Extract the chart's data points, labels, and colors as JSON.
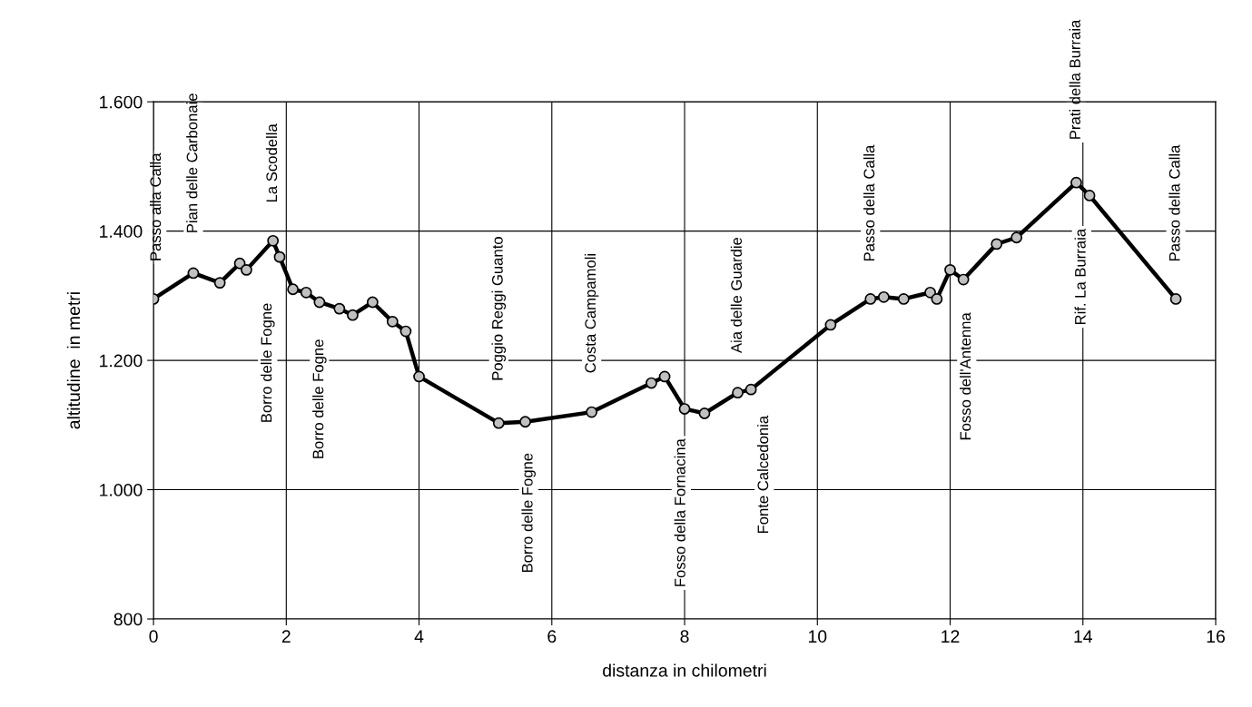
{
  "chart_data": {
    "type": "line",
    "xlabel": "distanza in chilometri",
    "ylabel": "altitudine  in metri",
    "x": [
      0,
      0.6,
      1.0,
      1.3,
      1.4,
      1.8,
      1.9,
      2.1,
      2.3,
      2.5,
      2.8,
      3.0,
      3.3,
      3.6,
      3.8,
      4.0,
      5.2,
      5.6,
      6.6,
      7.5,
      7.7,
      8.0,
      8.3,
      8.8,
      9.0,
      10.2,
      10.8,
      11.0,
      11.3,
      11.7,
      11.8,
      12.0,
      12.2,
      12.7,
      13.0,
      13.9,
      14.1,
      15.4
    ],
    "series": [
      {
        "color": "#000000",
        "values": [
          1295,
          1335,
          1320,
          1350,
          1340,
          1385,
          1360,
          1310,
          1305,
          1290,
          1280,
          1270,
          1290,
          1260,
          1245,
          1175,
          1103,
          1105,
          1120,
          1165,
          1175,
          1125,
          1118,
          1150,
          1155,
          1255,
          1295,
          1298,
          1295,
          1305,
          1295,
          1340,
          1325,
          1380,
          1390,
          1475,
          1455,
          1295
        ]
      }
    ],
    "xlim": [
      0,
      16
    ],
    "xticks": [
      0,
      2,
      4,
      6,
      8,
      10,
      12,
      14,
      16
    ],
    "ylim": [
      800,
      1600
    ],
    "yticks": [
      800,
      {
        "value": 1000,
        "label": "1.000"
      },
      {
        "value": 1200,
        "label": "1.200"
      },
      {
        "value": 1400,
        "label": "1.400"
      },
      {
        "value": 1600,
        "label": "1.600"
      }
    ],
    "grid": true,
    "marker": "circle",
    "line_style": "solid",
    "annotations": [
      {
        "text": "Passo alla Calla",
        "x": 0,
        "y": 1295
      },
      {
        "text": "Pian delle Carbonaie",
        "x": 0.6,
        "y": 1335
      },
      {
        "text": "La Scodella",
        "x": 1.8,
        "y": 1385
      },
      "Borro delle Fogne",
      {
        "text": "Borro delle Fogne",
        "x": 2.5,
        "y": 1290
      },
      {
        "text": "Poggio Reggi Guanto",
        "x": 5.2,
        "y": 1103
      },
      {
        "text": "Borro delle Fogne",
        "x": 5.6,
        "y": 1105
      },
      {
        "text": "Costa Campamoli",
        "x": 6.6,
        "y": 1120
      },
      {
        "text": "Fosso della Fornacina",
        "x": 8.0,
        "y": 1125
      },
      {
        "text": "Aia delle Guardie",
        "x": 8.8,
        "y": 1150
      },
      {
        "text": "Fonte Calcedonia",
        "x": 9.0,
        "y": 1155
      },
      {
        "text": "Passo della Calla",
        "x": 10.8,
        "y": 1295
      },
      {
        "text": "Fosso dell'Antenna",
        "x": 12.0,
        "y": 1340
      },
      {
        "text": "Prati della Burraia",
        "x": 13.9,
        "y": 1475
      },
      {
        "text": "Rif. La Burraia",
        "x": 14.1,
        "y": 1455
      },
      {
        "text": "Passo della Calla",
        "x": 15.4,
        "y": 1295
      }
    ]
  }
}
